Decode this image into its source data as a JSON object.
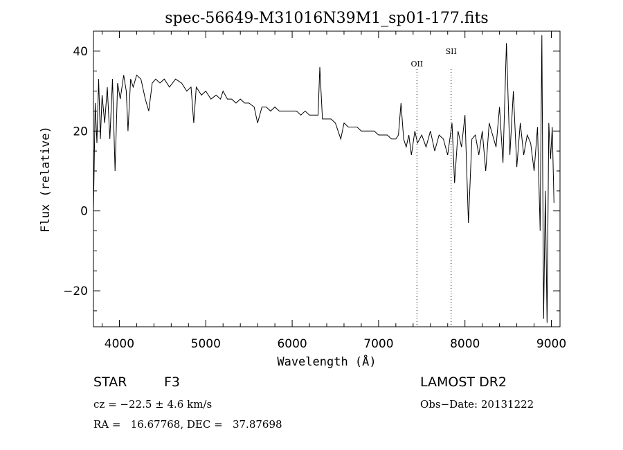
{
  "chart_data": {
    "type": "line",
    "title": "spec-56649-M31016N39M1_sp01-177.fits",
    "xlabel": "Wavelength (Å)",
    "ylabel": "Flux (relative)",
    "xlim": [
      3700,
      9100
    ],
    "ylim": [
      -29,
      45
    ],
    "x_ticks": [
      4000,
      5000,
      6000,
      7000,
      8000,
      9000
    ],
    "y_ticks": [
      -20,
      0,
      20,
      40
    ],
    "grid": false,
    "line_color": "#000000",
    "series": [
      {
        "x": [
          3700,
          3720,
          3740,
          3760,
          3780,
          3800,
          3830,
          3860,
          3890,
          3920,
          3950,
          3980,
          4010,
          4050,
          4080,
          4100,
          4130,
          4160,
          4200,
          4250,
          4300,
          4340,
          4380,
          4420,
          4470,
          4520,
          4580,
          4650,
          4720,
          4780,
          4830,
          4861,
          4890,
          4950,
          5000,
          5060,
          5120,
          5170,
          5200,
          5250,
          5300,
          5350,
          5400,
          5450,
          5500,
          5560,
          5600,
          5650,
          5700,
          5750,
          5800,
          5850,
          5890,
          5950,
          6000,
          6050,
          6100,
          6150,
          6200,
          6250,
          6300,
          6320,
          6350,
          6400,
          6450,
          6500,
          6563,
          6600,
          6650,
          6700,
          6750,
          6800,
          6850,
          6900,
          6950,
          7000,
          7050,
          7100,
          7150,
          7200,
          7230,
          7260,
          7290,
          7320,
          7350,
          7380,
          7420,
          7450,
          7500,
          7550,
          7600,
          7650,
          7700,
          7750,
          7800,
          7850,
          7880,
          7920,
          7960,
          8000,
          8040,
          8080,
          8120,
          8160,
          8200,
          8240,
          8280,
          8320,
          8360,
          8400,
          8440,
          8480,
          8520,
          8560,
          8600,
          8640,
          8680,
          8720,
          8760,
          8800,
          8840,
          8870,
          8890,
          8910,
          8930,
          8950,
          8970,
          8990,
          9010,
          9030
        ],
        "y": [
          0,
          27,
          17,
          33,
          18,
          29,
          22,
          31,
          18,
          33,
          10,
          32,
          28,
          34,
          30,
          20,
          33,
          31,
          34,
          33,
          28,
          25,
          32,
          33,
          32,
          33,
          31,
          33,
          32,
          30,
          31,
          22,
          31,
          29,
          30,
          28,
          29,
          28,
          30,
          28,
          28,
          27,
          28,
          27,
          27,
          26,
          22,
          26,
          26,
          25,
          26,
          25,
          25,
          25,
          25,
          25,
          24,
          25,
          24,
          24,
          24,
          36,
          23,
          23,
          23,
          22,
          18,
          22,
          21,
          21,
          21,
          20,
          20,
          20,
          20,
          19,
          19,
          19,
          18,
          18,
          19,
          27,
          18,
          16,
          19,
          14,
          20,
          17,
          19,
          16,
          20,
          15,
          19,
          18,
          14,
          22,
          7,
          20,
          16,
          24,
          -3,
          18,
          19,
          14,
          20,
          10,
          22,
          19,
          16,
          26,
          12,
          42,
          14,
          30,
          11,
          22,
          14,
          19,
          17,
          10,
          21,
          -5,
          44,
          -27,
          5,
          -28,
          22,
          13,
          21,
          2
        ]
      }
    ],
    "annotations": [
      {
        "label": "OII",
        "x": 7444
      },
      {
        "label": "SII",
        "x": 7840
      }
    ]
  },
  "info": {
    "object_class": "STAR",
    "subclass": "F3",
    "survey": "LAMOST DR2",
    "cz": "cz = −22.5 ± 4.6 km/s",
    "obs_date": "Obs−Date: 20131222",
    "coords": "RA =   16.67768, DEC =   37.87698"
  }
}
